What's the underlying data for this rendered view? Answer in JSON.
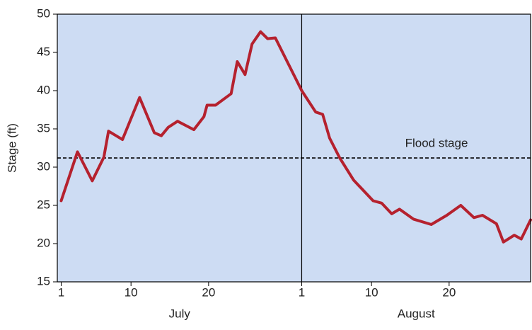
{
  "chart_data": {
    "type": "line",
    "ylabel": "Stage (ft)",
    "x": [
      1,
      3.1,
      5,
      6.5,
      7.1,
      8.9,
      11.1,
      13,
      13.9,
      14.8,
      16,
      18.1,
      19.4,
      19.8,
      20.9,
      22.9,
      23.7,
      24.7,
      25.6,
      26.7,
      27.6,
      28.6,
      32,
      33.8,
      34.7,
      35.6,
      36.9,
      38.7,
      41.2,
      42.3,
      43.6,
      44.6,
      46.4,
      48.7,
      50.7,
      52.5,
      54.2,
      55.3,
      57.1,
      58,
      59.4,
      60.3,
      61.5
    ],
    "values": [
      25.6,
      32.0,
      28.2,
      31.3,
      34.7,
      33.6,
      39.1,
      34.5,
      34.1,
      35.2,
      36.0,
      34.9,
      36.6,
      38.1,
      38.1,
      39.6,
      43.8,
      42.1,
      46.1,
      47.7,
      46.8,
      46.9,
      40.0,
      37.2,
      36.9,
      33.8,
      31.2,
      28.3,
      25.6,
      25.3,
      23.9,
      24.5,
      23.2,
      22.5,
      23.7,
      25.0,
      23.4,
      23.7,
      22.6,
      20.2,
      21.1,
      20.6,
      23.1
    ],
    "color": "#b5212e",
    "xlim": [
      0.5,
      61.5
    ],
    "xticks": [
      1,
      10,
      20,
      {
        "value": 32,
        "label": "1"
      },
      {
        "value": 41,
        "label": "10"
      },
      {
        "value": 51,
        "label": "20"
      }
    ],
    "ylim": [
      15,
      50
    ],
    "yticks": [
      15,
      20,
      25,
      30,
      35,
      40,
      45,
      50
    ],
    "x_group_labels": [
      "July",
      "August"
    ],
    "divider_x": 32,
    "reference_line": {
      "value": 31.2,
      "label": "Flood stage"
    },
    "background": "#cddcf3"
  }
}
